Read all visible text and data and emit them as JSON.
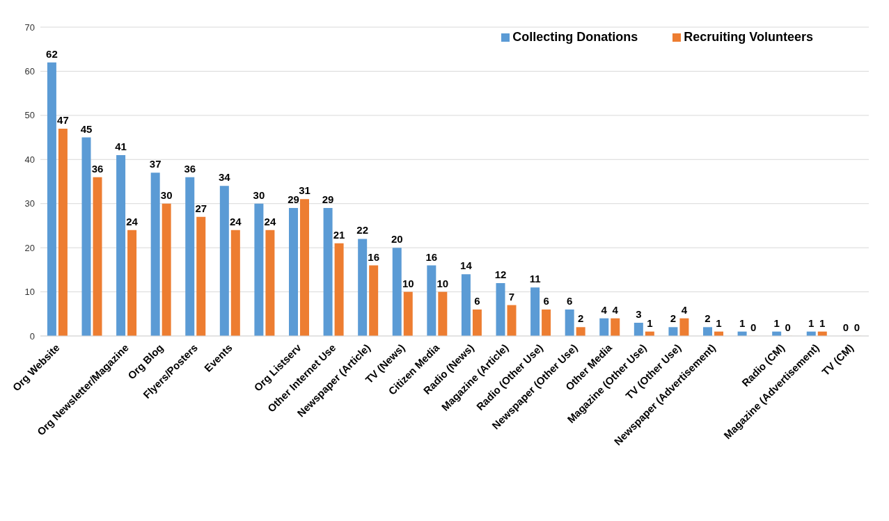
{
  "chart_data": {
    "type": "bar",
    "categories": [
      "Org Website",
      null,
      "Org Newsletter/Magazine",
      "Org Blog",
      "Flyers/Posters",
      "Events",
      null,
      "Org Listserv",
      "Other Internet Use",
      "Newspaper (Article)",
      "TV (News)",
      "Citizen Media",
      "Radio (News)",
      "Magazine (Article)",
      "Radio (Other Use)",
      "Newspaper (Other Use)",
      "Other Media",
      "Magazine (Other Use)",
      "TV (Other Use)",
      "Newspaper (Advertisement)",
      null,
      "Radio (CM)",
      "Magazine (Advertisement)",
      "TV (CM)"
    ],
    "series": [
      {
        "name": "Collecting Donations",
        "color": "#5b9bd5",
        "values": [
          62,
          45,
          41,
          37,
          36,
          34,
          30,
          29,
          29,
          22,
          20,
          16,
          14,
          12,
          11,
          6,
          4,
          3,
          2,
          2,
          1,
          1,
          1,
          0
        ]
      },
      {
        "name": "Recruiting Volunteers",
        "color": "#ed7d31",
        "values": [
          47,
          36,
          24,
          30,
          27,
          24,
          24,
          31,
          21,
          16,
          10,
          10,
          6,
          7,
          6,
          2,
          4,
          1,
          4,
          1,
          0,
          0,
          1,
          0
        ]
      }
    ],
    "ylim": [
      0,
      70
    ],
    "yticks": [
      0,
      10,
      20,
      30,
      40,
      50,
      60,
      70
    ],
    "grid": "y",
    "legend": "top right",
    "data_labels": true
  }
}
